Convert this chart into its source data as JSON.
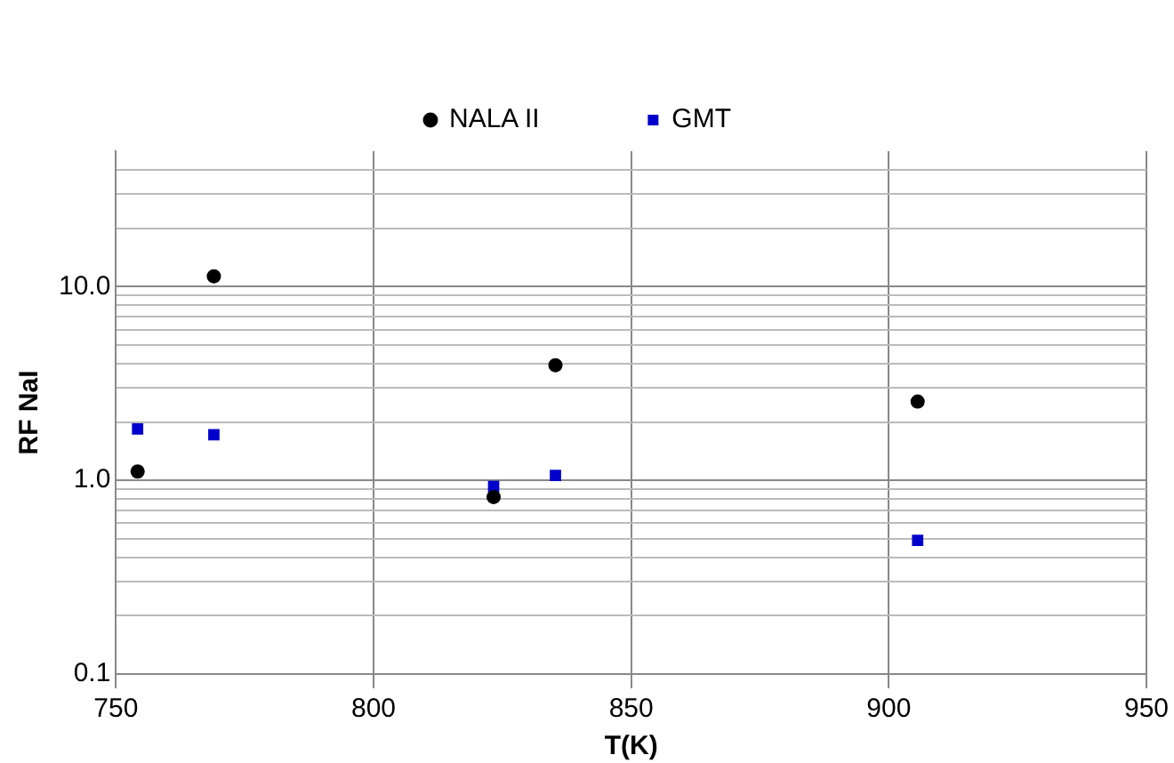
{
  "chart_data": {
    "type": "scatter",
    "xlabel": "T(K)",
    "ylabel": "RF NaI",
    "log": "y",
    "grid": true,
    "legend": "top",
    "xlim": [
      750,
      950
    ],
    "xticks": [
      750,
      800,
      850,
      900,
      950
    ],
    "ylim": [
      0.1,
      50
    ],
    "yticks": [
      {
        "value": 0.1,
        "label": "0.1"
      },
      {
        "value": 0.2,
        "label": null
      },
      {
        "value": 0.3,
        "label": null
      },
      {
        "value": 0.4,
        "label": null
      },
      {
        "value": 0.5,
        "label": null
      },
      {
        "value": 0.6,
        "label": null
      },
      {
        "value": 0.7,
        "label": null
      },
      {
        "value": 0.8,
        "label": null
      },
      {
        "value": 0.9,
        "label": null
      },
      {
        "value": 1,
        "label": "1.0"
      },
      {
        "value": 2,
        "label": null
      },
      {
        "value": 3,
        "label": null
      },
      {
        "value": 4,
        "label": null
      },
      {
        "value": 5,
        "label": null
      },
      {
        "value": 6,
        "label": null
      },
      {
        "value": 7,
        "label": null
      },
      {
        "value": 8,
        "label": null
      },
      {
        "value": 9,
        "label": null
      },
      {
        "value": 10,
        "label": "10.0"
      },
      {
        "value": 20,
        "label": null
      },
      {
        "value": 30,
        "label": null
      },
      {
        "value": 40,
        "label": null
      }
    ],
    "series": [
      {
        "name": "NALA II",
        "color": "#000000",
        "marker": "circle",
        "x": [
          754.2,
          769,
          823.3,
          835.3,
          905.6
        ],
        "values": [
          1.11,
          11.3,
          0.82,
          3.93,
          2.55
        ]
      },
      {
        "name": "GMT",
        "color": "#0000cc",
        "marker": "square",
        "x": [
          754.2,
          769,
          823.3,
          835.3,
          905.6
        ],
        "values": [
          1.84,
          1.72,
          0.93,
          1.06,
          0.49
        ]
      }
    ]
  }
}
